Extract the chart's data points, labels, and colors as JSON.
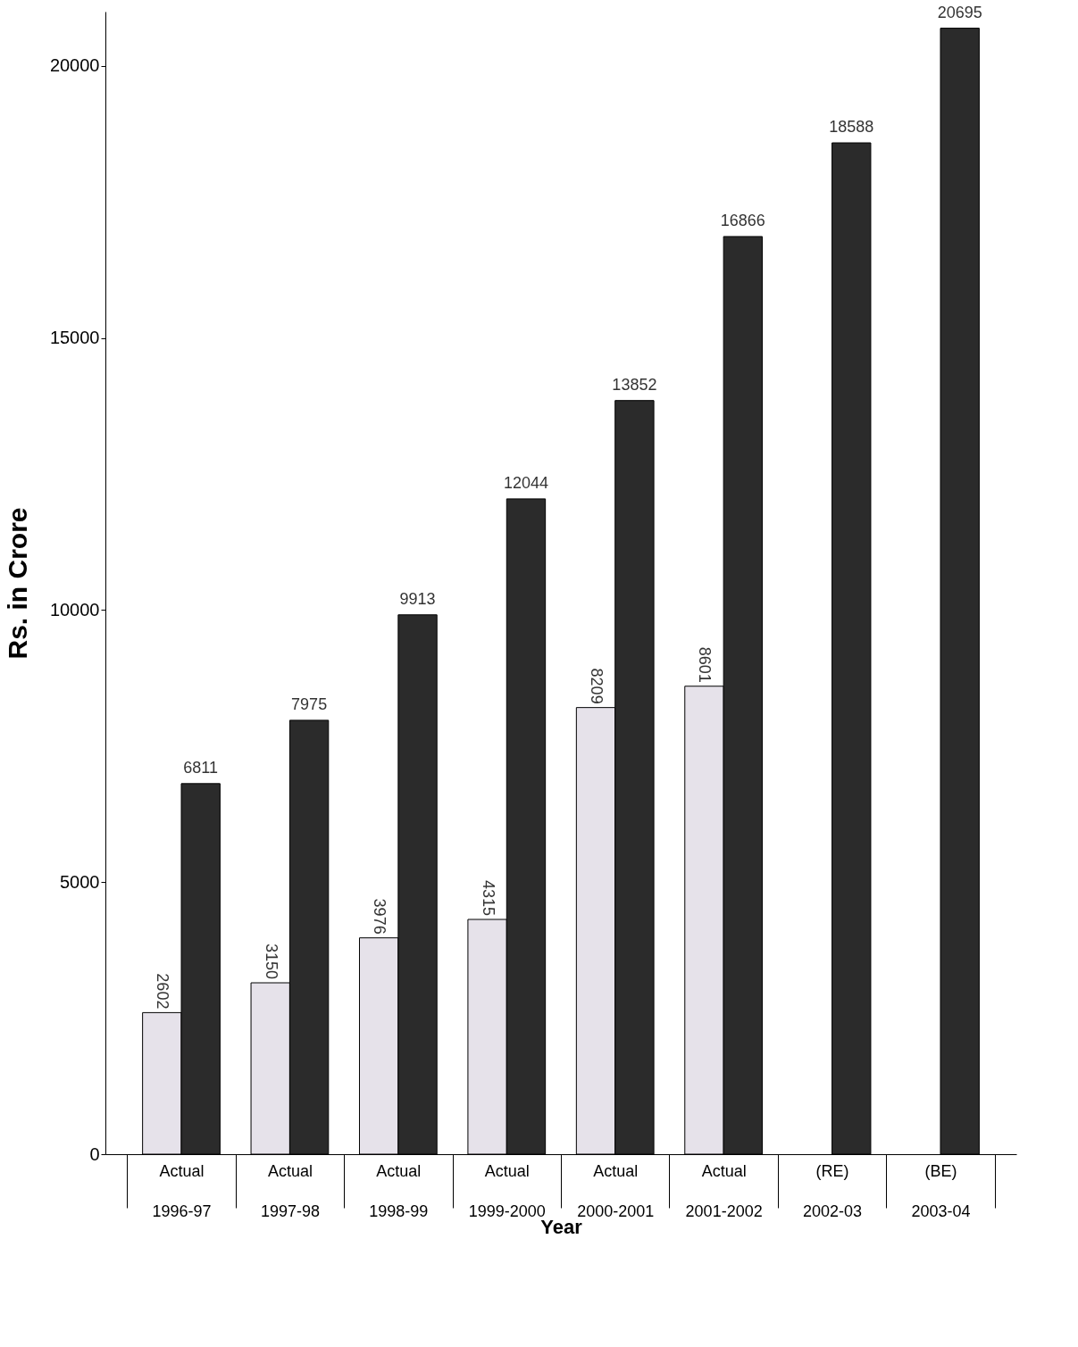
{
  "chart_data": {
    "type": "bar",
    "xlabel": "Year",
    "ylabel": "Rs. in Crore",
    "categories": [
      "Actual 1996-97",
      "Actual 1997-98",
      "Actual 1998-99",
      "Actual 1999-2000",
      "Actual 2000-2001",
      "Actual 2001-2002",
      "(RE) 2002-03",
      "(BE) 2003-04"
    ],
    "series": [
      {
        "color": "#e6e2ea",
        "values": [
          2602,
          3150,
          3976,
          4315,
          8209,
          8601,
          null,
          null
        ]
      },
      {
        "color": "#2b2b2b",
        "values": [
          6811,
          7975,
          9913,
          12044,
          13852,
          16866,
          18588,
          20695
        ]
      }
    ],
    "ylim": [
      0,
      21000
    ],
    "yticks": [
      0,
      5000,
      10000,
      15000,
      20000
    ],
    "grid": false,
    "data_labels": true
  }
}
